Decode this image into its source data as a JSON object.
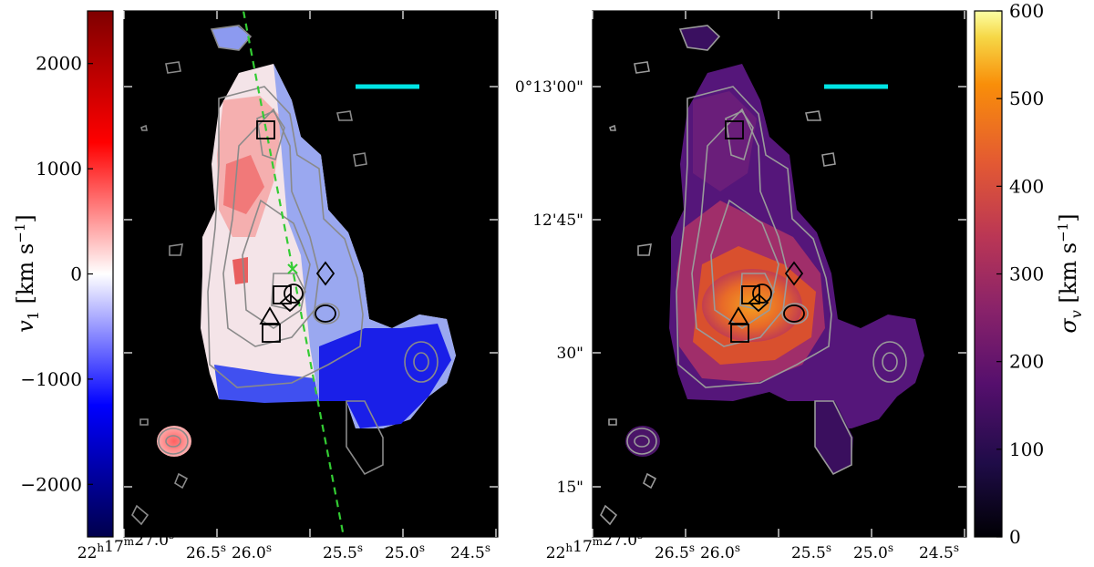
{
  "chart_data": [
    {
      "type": "heatmap",
      "panel": "left",
      "quantity": "line-of-sight velocity map",
      "colormap": "seismic (blue-white-red)",
      "colorbar": {
        "label_symbol": "v",
        "label_subscript": "1",
        "label_units": "[km s",
        "label_units_exp": "−1",
        "label_close": "]",
        "range": [
          -2500,
          2500
        ],
        "ticks": [
          2000,
          1000,
          0,
          -1000,
          -2000
        ],
        "tick_labels": [
          "2000",
          "1000",
          "0",
          "−1000",
          "−2000"
        ],
        "placement": "left"
      },
      "x_tick_labels": [
        {
          "main": "22",
          "sup": "h",
          "main2": "17",
          "sup2": "m",
          "main3": "27.0",
          "sup3": "s"
        },
        {
          "main": "26.5",
          "sup": "s"
        },
        {
          "main": "26.0",
          "sup": "s"
        },
        {
          "main": "25.5",
          "sup": "s"
        },
        {
          "main": "25.0",
          "sup": "s"
        },
        {
          "main": "24.5",
          "sup": "s"
        }
      ],
      "x_ticks_ra_seconds": [
        27.0,
        26.5,
        26.0,
        25.5,
        25.0,
        24.5
      ],
      "overlays": [
        "grey flux contours",
        "green dashed line",
        "cyan scale bar",
        "black markers"
      ],
      "dashed_line_color": "#33cc33",
      "scalebar_color": "#00e5e5"
    },
    {
      "type": "heatmap",
      "panel": "right",
      "quantity": "velocity dispersion map",
      "colormap": "inferno",
      "colorbar": {
        "label_symbol": "σ",
        "label_subscript": "v",
        "label_units": "[km s",
        "label_units_exp": "−1",
        "label_close": "]",
        "range": [
          0,
          600
        ],
        "ticks": [
          600,
          500,
          400,
          300,
          200,
          100,
          0
        ],
        "tick_labels": [
          "600",
          "500",
          "400",
          "300",
          "200",
          "100",
          "0"
        ],
        "placement": "right"
      },
      "y_tick_labels": [
        "0°13′00″",
        "12′45″",
        "30″",
        "15″"
      ],
      "y_tick_labels_raw": [
        "0°13'00\"",
        "12'45\"",
        "30\"",
        "15\""
      ],
      "x_tick_labels": [
        {
          "main": "22",
          "sup": "h",
          "main2": "17",
          "sup2": "m",
          "main3": "27.0",
          "sup3": "s"
        },
        {
          "main": "26.5",
          "sup": "s"
        },
        {
          "main": "26.0",
          "sup": "s"
        },
        {
          "main": "25.5",
          "sup": "s"
        },
        {
          "main": "25.0",
          "sup": "s"
        },
        {
          "main": "24.5",
          "sup": "s"
        }
      ],
      "overlays": [
        "grey flux contours",
        "cyan scale bar",
        "black markers"
      ],
      "scalebar_color": "#00e5e5"
    }
  ]
}
